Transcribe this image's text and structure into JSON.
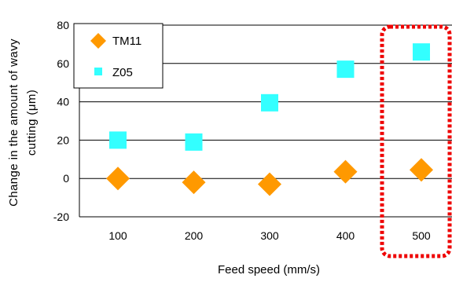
{
  "chart_data": {
    "type": "scatter",
    "categories": [
      "100",
      "200",
      "300",
      "400",
      "500"
    ],
    "xlabel": "Feed speed (mm/s)",
    "ylabel_lines": [
      "Change in the amount of wavy",
      "cutting (μm)"
    ],
    "ylim": [
      -20,
      80
    ],
    "yticks": [
      -20,
      0,
      20,
      40,
      60,
      80
    ],
    "ytick_labels": [
      "-20",
      "0",
      "20",
      "40",
      "60",
      "80"
    ],
    "grid": "horizontal",
    "legend_position": "top-left",
    "highlight_category": "500",
    "series": [
      {
        "name": "TM11",
        "marker": "diamond",
        "color": "#ff9900",
        "values": [
          0,
          -2,
          -3,
          3.5,
          4.5
        ]
      },
      {
        "name": "Z05",
        "marker": "square",
        "color": "#33ffff",
        "values": [
          20,
          19,
          39.5,
          57,
          66
        ]
      }
    ],
    "highlight_color": "#ee0000"
  }
}
